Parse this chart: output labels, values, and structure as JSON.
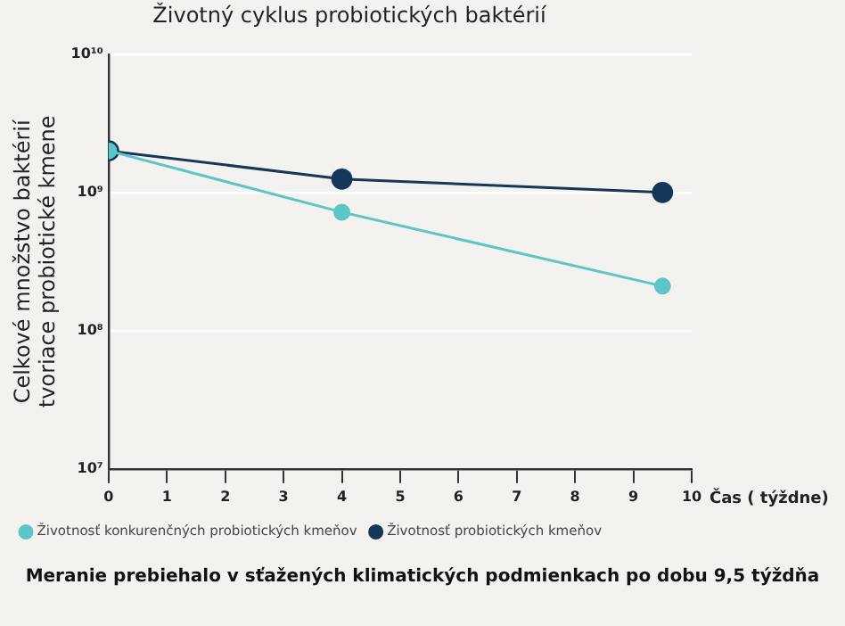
{
  "chart_data": {
    "type": "line",
    "title": "Životný cyklus probiotických baktérií",
    "xlabel": "Čas ( týždne)",
    "ylabel": "Celkové množstvo baktérií\ntvoriace probiotické kmene",
    "x": [
      0,
      4,
      9.5
    ],
    "series": [
      {
        "name": "Životnosť konkurenčných probiotických kmeňov",
        "color": "#5cc6c6",
        "values": [
          2000000000,
          720000000,
          210000000
        ]
      },
      {
        "name": "Životnosť probiotických kmeňov",
        "color": "#15375a",
        "values": [
          2000000000,
          1250000000,
          1000000000
        ]
      }
    ],
    "log": "y",
    "xlim": [
      0,
      10
    ],
    "xticks": [
      0,
      1,
      2,
      3,
      4,
      5,
      6,
      7,
      8,
      9,
      10
    ],
    "ylim": [
      10000000,
      10000000000
    ],
    "yticks": [
      {
        "value": 10000000,
        "label": "10⁷"
      },
      {
        "value": 100000000,
        "label": "10⁸"
      },
      {
        "value": 1000000000,
        "label": "10⁹"
      },
      {
        "value": 10000000000,
        "label": "10¹⁰"
      }
    ],
    "grid": "y",
    "legend": "bottom",
    "marker": "circle",
    "line_style": "solid",
    "annotations": [
      "Meranie prebiehalo v sťažených klimatických podmienkach po dobu 9,5 týždňa"
    ]
  }
}
